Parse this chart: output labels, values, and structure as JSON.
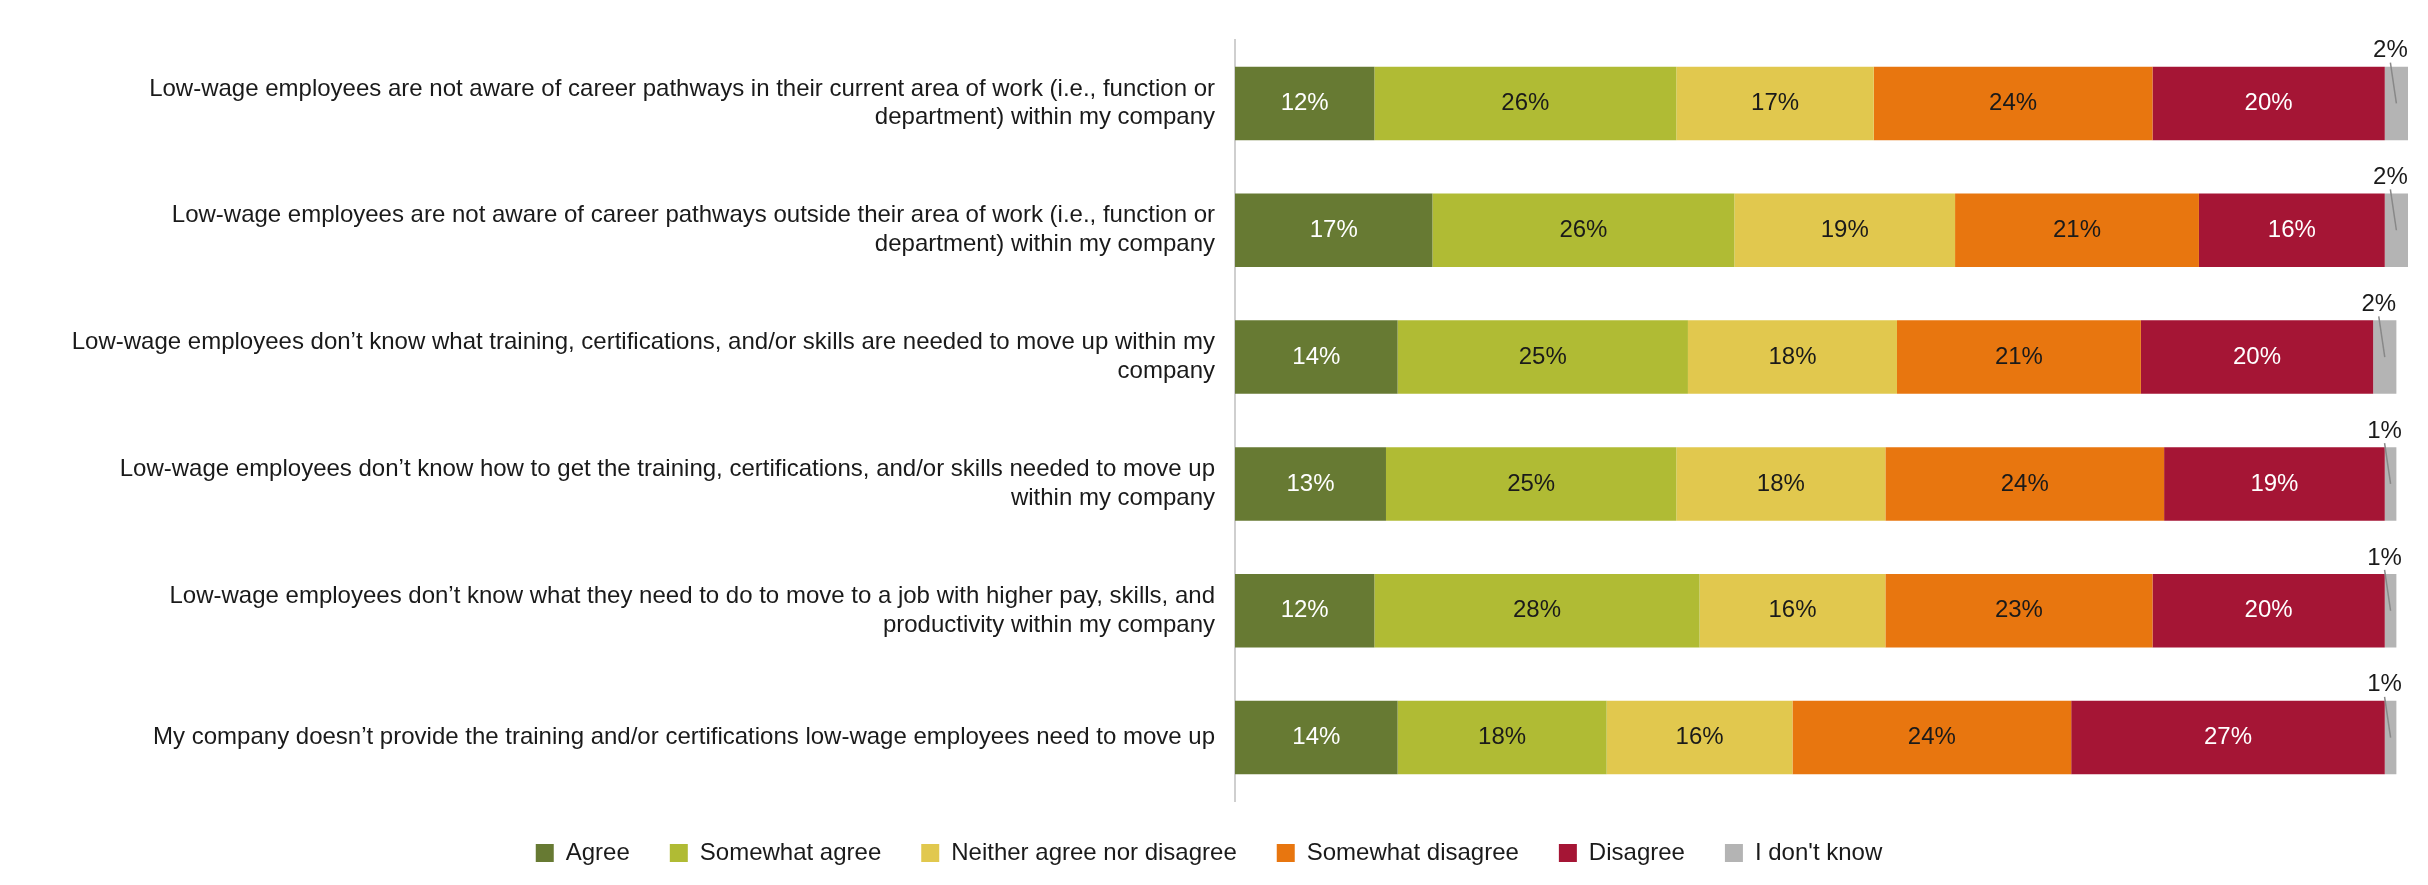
{
  "chart_data": {
    "type": "bar",
    "orientation": "horizontal",
    "stacked": true,
    "legend": "bottom",
    "grid": false,
    "categories": [
      "Low-wage employees are not aware of career pathways in their current area of work (i.e., function or department) within my company",
      "Low-wage employees are not aware of career pathways outside their area of work (i.e., function or department) within my company",
      "Low-wage employees don’t know what training, certifications, and/or skills are needed to move up within my company",
      "Low-wage employees don’t know how to get the training, certifications, and/or skills needed to move up within my company",
      "Low-wage employees don’t know what they need to do to move to a job with higher pay, skills, and productivity within my company",
      "My company doesn’t provide the training and/or certifications low-wage employees need to move up"
    ],
    "series": [
      {
        "name": "Agree",
        "color": "#677a33",
        "values": [
          12,
          17,
          14,
          13,
          12,
          14
        ],
        "value_labels": [
          "12%",
          "17%",
          "14%",
          "13%",
          "12%",
          "14%"
        ]
      },
      {
        "name": "Somewhat agree",
        "color": "#b0bb34",
        "values": [
          26,
          26,
          25,
          25,
          28,
          18
        ],
        "value_labels": [
          "26%",
          "26%",
          "25%",
          "25%",
          "28%",
          "18%"
        ]
      },
      {
        "name": "Neither agree nor disagree",
        "color": "#e1c84e",
        "values": [
          17,
          19,
          18,
          18,
          16,
          16
        ],
        "value_labels": [
          "17%",
          "19%",
          "18%",
          "18%",
          "16%",
          "16%"
        ]
      },
      {
        "name": "Somewhat disagree",
        "color": "#e8760f",
        "values": [
          24,
          21,
          21,
          24,
          23,
          24
        ],
        "value_labels": [
          "24%",
          "21%",
          "21%",
          "24%",
          "23%",
          "24%"
        ]
      },
      {
        "name": "Disagree",
        "color": "#a51535",
        "values": [
          20,
          16,
          20,
          19,
          20,
          27
        ],
        "value_labels": [
          "20%",
          "16%",
          "20%",
          "19%",
          "20%",
          "27%"
        ]
      },
      {
        "name": "I don't know",
        "color": "#b4b4b4",
        "values": [
          2,
          2,
          2,
          1,
          1,
          1
        ],
        "value_labels": [
          "2%",
          "2%",
          "2%",
          "1%",
          "1%",
          "1%"
        ]
      }
    ]
  }
}
